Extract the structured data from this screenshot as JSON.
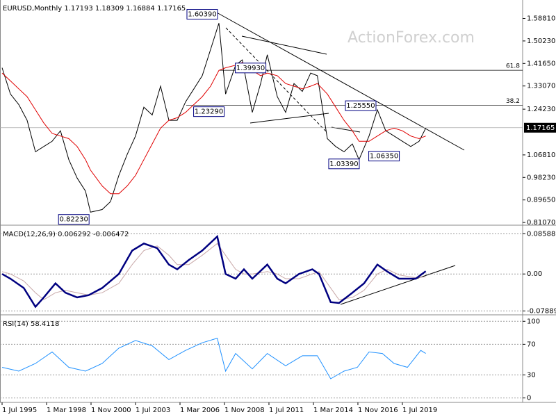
{
  "chart_data": [
    {
      "type": "line",
      "title": "EURUSD,Monthly  1.17193 1.18309 1.16884 1.17165",
      "watermark": "ActionForex.com",
      "xlim": [
        1995.375,
        2026.71
      ],
      "ylim": [
        0.803,
        1.653
      ],
      "yticks": [
        {
          "value": 1.5881,
          "label": "1.58810"
        },
        {
          "value": 1.5023,
          "label": "1.50230"
        },
        {
          "value": 1.4165,
          "label": "1.41650"
        },
        {
          "value": 1.3307,
          "label": "1.33070"
        },
        {
          "value": 1.2423,
          "label": "1.24230"
        },
        {
          "value": 1.0681,
          "label": "1.06810"
        },
        {
          "value": 0.9823,
          "label": "0.98230"
        },
        {
          "value": 0.8965,
          "label": "0.89650"
        },
        {
          "value": 0.8107,
          "label": "0.81070"
        }
      ],
      "x": [
        1995.5,
        1996.0,
        1996.5,
        1997.0,
        1997.5,
        1998.0,
        1998.5,
        1999.0,
        1999.5,
        2000.0,
        2000.5,
        2000.8,
        2001.5,
        2002.0,
        2002.5,
        2003.0,
        2003.5,
        2004.0,
        2004.5,
        2005.0,
        2005.5,
        2006.0,
        2006.5,
        2007.0,
        2007.5,
        2008.0,
        2008.5,
        2008.9,
        2009.5,
        2009.9,
        2010.5,
        2011.0,
        2011.4,
        2012.0,
        2012.5,
        2013.0,
        2013.5,
        2014.0,
        2014.4,
        2015.0,
        2015.5,
        2016.0,
        2016.5,
        2016.9,
        2017.5,
        2018.0,
        2018.5,
        2019.0,
        2019.5,
        2020.0,
        2020.5,
        2020.9
      ],
      "series": [
        {
          "color": "#000000",
          "width": 1,
          "values": [
            1.4,
            1.3,
            1.26,
            1.2,
            1.08,
            1.1,
            1.12,
            1.16,
            1.05,
            0.98,
            0.93,
            0.85,
            0.86,
            0.89,
            0.99,
            1.07,
            1.14,
            1.25,
            1.22,
            1.33,
            1.2,
            1.2,
            1.27,
            1.32,
            1.37,
            1.47,
            1.57,
            1.3,
            1.41,
            1.43,
            1.23,
            1.34,
            1.45,
            1.29,
            1.23,
            1.34,
            1.31,
            1.38,
            1.37,
            1.13,
            1.1,
            1.08,
            1.11,
            1.05,
            1.14,
            1.24,
            1.16,
            1.14,
            1.12,
            1.1,
            1.12,
            1.17
          ]
        },
        {
          "color": "#e00000",
          "width": 1,
          "values": [
            1.38,
            1.35,
            1.32,
            1.29,
            1.24,
            1.19,
            1.15,
            1.14,
            1.13,
            1.1,
            1.05,
            1.01,
            0.95,
            0.92,
            0.92,
            0.95,
            0.99,
            1.05,
            1.11,
            1.17,
            1.2,
            1.21,
            1.23,
            1.26,
            1.29,
            1.33,
            1.39,
            1.4,
            1.41,
            1.42,
            1.39,
            1.37,
            1.38,
            1.37,
            1.34,
            1.33,
            1.32,
            1.33,
            1.34,
            1.3,
            1.25,
            1.2,
            1.16,
            1.12,
            1.12,
            1.14,
            1.16,
            1.17,
            1.16,
            1.14,
            1.13,
            1.14
          ]
        }
      ],
      "annotations": [
        {
          "label": "1.60390",
          "x": 2008.5,
          "y": 1.6039
        },
        {
          "label": "1.39930",
          "x": 2011.4,
          "y": 1.3993
        },
        {
          "label": "1.23290",
          "x": 2008.9,
          "y": 1.2329
        },
        {
          "label": "1.25550",
          "x": 2018.0,
          "y": 1.2555
        },
        {
          "label": "1.03390",
          "x": 2017.0,
          "y": 1.0339
        },
        {
          "label": "1.06350",
          "x": 2019.4,
          "y": 1.0635
        },
        {
          "label": "0.82230",
          "x": 2000.8,
          "y": 0.8223
        }
      ],
      "fib_levels": [
        {
          "label": "61.8",
          "price": 1.3905
        },
        {
          "label": "38.2",
          "price": 1.2573
        }
      ],
      "last": {
        "label": "1.17165",
        "value": 1.17165
      }
    },
    {
      "type": "line",
      "title": "MACD(12,26,9) 0.006292 -0.006472",
      "grid": true,
      "xlim": [
        1995.375,
        2026.71
      ],
      "ylim": [
        -0.0857,
        0.0997
      ],
      "yticks": [
        0.085885,
        {
          "value": 0,
          "label": "0.00"
        },
        -0.078894
      ],
      "x": [
        1995.5,
        1996.0,
        1996.8,
        1997.5,
        1998.0,
        1998.7,
        1999.3,
        2000.0,
        2000.7,
        2001.5,
        2002.5,
        2003.3,
        2004.0,
        2004.8,
        2005.5,
        2006.0,
        2006.7,
        2007.5,
        2008.4,
        2008.9,
        2009.5,
        2010.0,
        2010.5,
        2011.4,
        2012.0,
        2012.5,
        2013.3,
        2014.1,
        2014.5,
        2015.2,
        2015.7,
        2016.5,
        2017.2,
        2018.0,
        2018.6,
        2019.3,
        2020.3,
        2020.9
      ],
      "series": [
        {
          "color": "#c8a8a8",
          "width": 1,
          "values": [
            0.005,
            0,
            -0.015,
            -0.04,
            -0.055,
            -0.04,
            -0.035,
            -0.04,
            -0.045,
            -0.04,
            -0.02,
            0.02,
            0.05,
            0.06,
            0.04,
            0.02,
            0.02,
            0.04,
            0.065,
            0.04,
            0.01,
            0,
            0,
            0.005,
            0,
            -0.01,
            -0.01,
            0,
            0.005,
            -0.03,
            -0.055,
            -0.05,
            -0.035,
            0,
            0.01,
            -0.002,
            -0.008,
            -0.006
          ]
        },
        {
          "color": "#000080",
          "width": 2.5,
          "values": [
            0,
            -0.01,
            -0.03,
            -0.07,
            -0.05,
            -0.02,
            -0.04,
            -0.05,
            -0.045,
            -0.03,
            0,
            0.05,
            0.065,
            0.055,
            0.02,
            0.01,
            0.03,
            0.05,
            0.08,
            0,
            -0.01,
            0.01,
            -0.01,
            0.02,
            -0.01,
            -0.02,
            0,
            0.01,
            0,
            -0.06,
            -0.062,
            -0.04,
            -0.02,
            0.02,
            0.005,
            -0.01,
            -0.01,
            0.006
          ]
        }
      ]
    },
    {
      "type": "line",
      "title": "RSI(14) 58.4118",
      "grid": true,
      "xlim": [
        1995.375,
        2026.71
      ],
      "ylim": [
        -4.9,
        105.7
      ],
      "yticks": [
        100,
        70,
        30,
        0
      ],
      "xticks": [
        {
          "value": 1995.5,
          "label": "1 Jul 1995"
        },
        {
          "value": 1998.167,
          "label": "1 Mar 1998"
        },
        {
          "value": 2000.833,
          "label": "1 Nov 2000"
        },
        {
          "value": 2003.5,
          "label": "1 Jul 2003"
        },
        {
          "value": 2006.167,
          "label": "1 Mar 2006"
        },
        {
          "value": 2008.833,
          "label": "1 Nov 2008"
        },
        {
          "value": 2011.5,
          "label": "1 Jul 2011"
        },
        {
          "value": 2014.167,
          "label": "1 Mar 2014"
        },
        {
          "value": 2016.833,
          "label": "1 Nov 2016"
        },
        {
          "value": 2019.5,
          "label": "1 Jul 2019"
        }
      ],
      "x": [
        1995.5,
        1996.5,
        1997.5,
        1998.5,
        1999.5,
        2000.5,
        2001.5,
        2002.5,
        2003.5,
        2004.5,
        2005.5,
        2006.5,
        2007.5,
        2008.4,
        2008.9,
        2009.5,
        2010.5,
        2011.4,
        2012.5,
        2013.5,
        2014.4,
        2015.2,
        2016.0,
        2016.8,
        2017.5,
        2018.3,
        2019.0,
        2019.8,
        2020.6,
        2020.9
      ],
      "series": [
        {
          "color": "#1e90ff",
          "width": 1,
          "values": [
            40,
            35,
            45,
            60,
            40,
            35,
            45,
            65,
            75,
            68,
            50,
            62,
            72,
            78,
            35,
            58,
            38,
            58,
            42,
            55,
            55,
            25,
            35,
            40,
            60,
            58,
            45,
            40,
            62,
            58
          ]
        }
      ]
    }
  ]
}
